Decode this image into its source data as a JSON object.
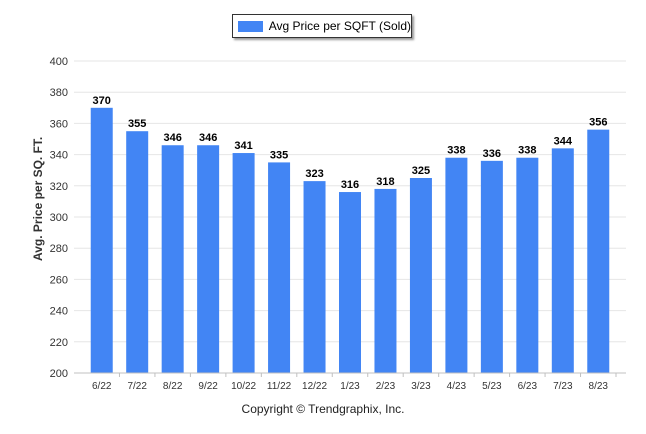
{
  "legend": {
    "label": "Avg Price per SQFT (Sold)",
    "color": "#4285f4"
  },
  "footer": {
    "text": "Copyright © Trendgraphix, Inc."
  },
  "chart_data": {
    "type": "bar",
    "categories": [
      "6/22",
      "7/22",
      "8/22",
      "9/22",
      "10/22",
      "11/22",
      "12/22",
      "1/23",
      "2/23",
      "3/23",
      "4/23",
      "5/23",
      "6/23",
      "7/23",
      "8/23"
    ],
    "series": [
      {
        "name": "Avg Price per SQFT (Sold)",
        "values": [
          370,
          355,
          346,
          346,
          341,
          335,
          323,
          316,
          318,
          325,
          338,
          336,
          338,
          344,
          356
        ]
      }
    ],
    "ylabel": "Avg. Price per SQ. FT.",
    "xlabel": "",
    "ylim": [
      200,
      400
    ],
    "yticks": [
      200,
      220,
      240,
      260,
      280,
      300,
      320,
      340,
      360,
      380,
      400
    ],
    "grid": true,
    "legend_position": "top-center",
    "bar_color": "#4285f4",
    "data_labels": true
  }
}
